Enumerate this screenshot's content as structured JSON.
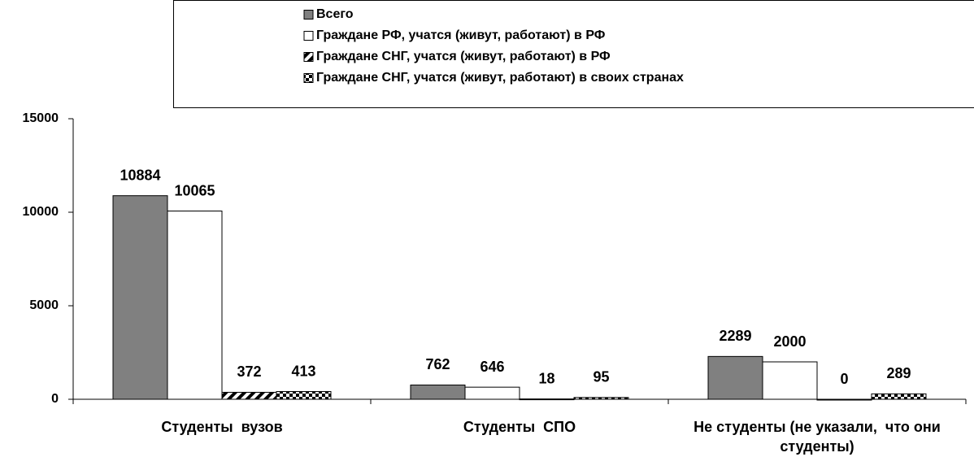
{
  "chart_data": {
    "type": "bar",
    "categories": [
      "Студенты  вузов",
      "Студенты  СПО",
      "Не студенты (не указали,  что они студенты)"
    ],
    "series": [
      {
        "name": "Всего",
        "color": "#808080",
        "values": [
          10884,
          762,
          2289
        ]
      },
      {
        "name": "Граждане РФ, учатся (живут, работают) в РФ",
        "color": "#ffffff",
        "values": [
          10065,
          646,
          2000
        ]
      },
      {
        "name": "Граждане СНГ, учатся (живут, работают) в РФ",
        "color": "#000000",
        "pattern": "diagonal",
        "values": [
          372,
          18,
          0
        ]
      },
      {
        "name": "Граждане СНГ, учатся (живут, работают) в своих странах",
        "color": "#000000",
        "pattern": "checker",
        "values": [
          413,
          95,
          289
        ]
      }
    ],
    "ylim": [
      0,
      15000
    ],
    "yticks": [
      0,
      5000,
      10000,
      15000
    ],
    "grid": false,
    "legend": "top"
  }
}
